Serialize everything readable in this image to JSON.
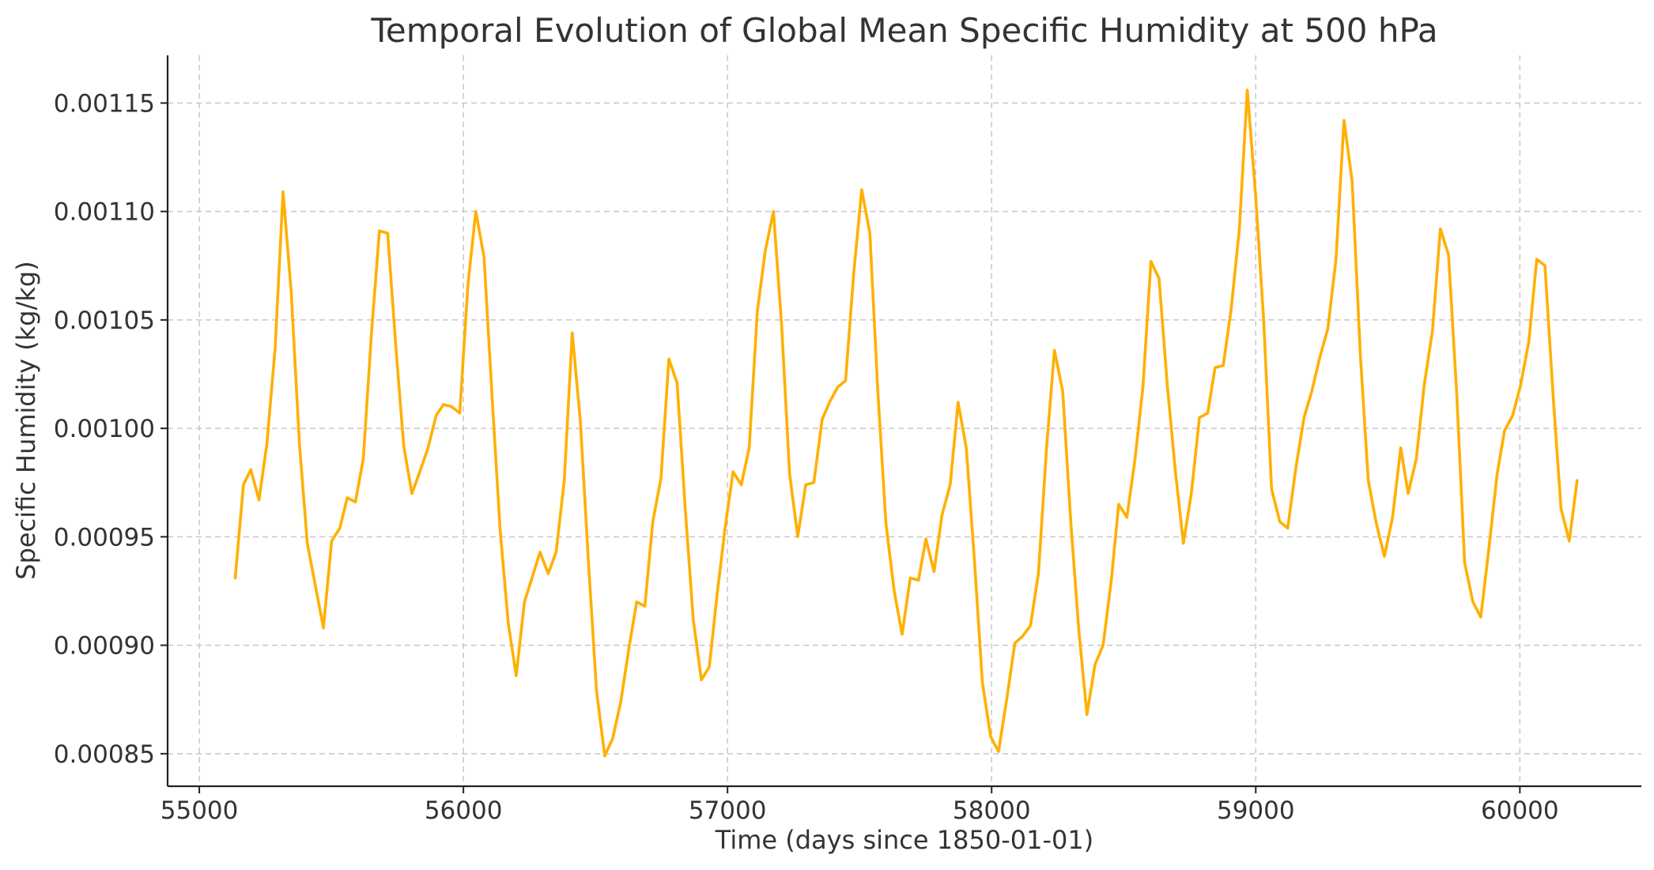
{
  "chart_data": {
    "type": "line",
    "title": "Temporal Evolution of Global Mean Specific Humidity at 500 hPa",
    "xlabel": "Time (days since 1850-01-01)",
    "ylabel": "Specific Humidity (kg/kg)",
    "xlim": [
      54880,
      60460
    ],
    "ylim": [
      0.000835,
      0.001172
    ],
    "xticks": [
      55000,
      56000,
      57000,
      58000,
      59000,
      60000
    ],
    "xtick_labels": [
      "55000",
      "56000",
      "57000",
      "58000",
      "59000",
      "60000"
    ],
    "yticks": [
      0.00085,
      0.0009,
      0.00095,
      0.001,
      0.00105,
      0.0011,
      0.00115
    ],
    "ytick_labels": [
      "0.00085",
      "0.00090",
      "0.00095",
      "0.00100",
      "0.00105",
      "0.00110",
      "0.00115"
    ],
    "grid": true,
    "line_color": "#ffb000",
    "series": [
      {
        "x": [
          55136,
          55167,
          55195,
          55226,
          55256,
          55287,
          55317,
          55348,
          55379,
          55409,
          55440,
          55470,
          55501,
          55532,
          55560,
          55591,
          55621,
          55652,
          55682,
          55713,
          55744,
          55774,
          55805,
          55835,
          55866,
          55897,
          55925,
          55956,
          55986,
          56017,
          56047,
          56078,
          56109,
          56139,
          56170,
          56200,
          56231,
          56262,
          56290,
          56321,
          56351,
          56382,
          56412,
          56443,
          56474,
          56504,
          56535,
          56565,
          56596,
          56627,
          56656,
          56687,
          56717,
          56748,
          56778,
          56809,
          56840,
          56870,
          56901,
          56931,
          56962,
          56993,
          57021,
          57052,
          57082,
          57113,
          57143,
          57174,
          57205,
          57235,
          57266,
          57296,
          57327,
          57358,
          57386,
          57417,
          57447,
          57478,
          57508,
          57539,
          57570,
          57600,
          57631,
          57661,
          57692,
          57723,
          57751,
          57782,
          57812,
          57843,
          57873,
          57904,
          57935,
          57965,
          57996,
          58026,
          58057,
          58088,
          58116,
          58147,
          58177,
          58208,
          58238,
          58269,
          58300,
          58330,
          58361,
          58391,
          58422,
          58453,
          58481,
          58512,
          58542,
          58573,
          58603,
          58634,
          58665,
          58695,
          58726,
          58756,
          58787,
          58818,
          58846,
          58877,
          58907,
          58938,
          58968,
          58999,
          59030,
          59060,
          59091,
          59121,
          59152,
          59183,
          59212,
          59243,
          59273,
          59304,
          59334,
          59365,
          59396,
          59426,
          59457,
          59487,
          59518,
          59549,
          59577,
          59608,
          59638,
          59669,
          59699,
          59730,
          59761,
          59791,
          59822,
          59852,
          59883,
          59914,
          59942,
          59973,
          60003,
          60034,
          60064,
          60095,
          60126,
          60156,
          60187,
          60217
        ],
        "values": [
          0.000931,
          0.000974,
          0.000981,
          0.000967,
          0.000993,
          0.001037,
          0.001109,
          0.001063,
          0.000993,
          0.000947,
          0.000927,
          0.000908,
          0.000948,
          0.000954,
          0.000968,
          0.000966,
          0.000986,
          0.001044,
          0.001091,
          0.00109,
          0.001038,
          0.000992,
          0.00097,
          0.00098,
          0.000991,
          0.001006,
          0.001011,
          0.00101,
          0.001007,
          0.001066,
          0.0011,
          0.001079,
          0.001014,
          0.000953,
          0.00091,
          0.000886,
          0.00092,
          0.000932,
          0.000943,
          0.000933,
          0.000943,
          0.000976,
          0.001044,
          0.001003,
          0.000937,
          0.000879,
          0.000849,
          0.000857,
          0.000874,
          0.000899,
          0.00092,
          0.000918,
          0.000957,
          0.000977,
          0.001032,
          0.001021,
          0.000963,
          0.000912,
          0.000884,
          0.00089,
          0.000925,
          0.000956,
          0.00098,
          0.000974,
          0.000991,
          0.001054,
          0.001082,
          0.0011,
          0.001047,
          0.000979,
          0.00095,
          0.000974,
          0.000975,
          0.001004,
          0.001012,
          0.001019,
          0.001022,
          0.001072,
          0.00111,
          0.00109,
          0.001015,
          0.000956,
          0.000925,
          0.000905,
          0.000931,
          0.00093,
          0.000949,
          0.000934,
          0.00096,
          0.000974,
          0.001012,
          0.000991,
          0.000939,
          0.000883,
          0.000858,
          0.000851,
          0.000875,
          0.000901,
          0.000904,
          0.000909,
          0.000933,
          0.000991,
          0.001036,
          0.001017,
          0.000956,
          0.000907,
          0.000868,
          0.000891,
          0.0009,
          0.00093,
          0.000965,
          0.000959,
          0.000985,
          0.001019,
          0.001077,
          0.001069,
          0.00102,
          0.000981,
          0.000947,
          0.00097,
          0.001005,
          0.001007,
          0.001028,
          0.001029,
          0.001055,
          0.001092,
          0.001156,
          0.001108,
          0.00105,
          0.000972,
          0.000957,
          0.000954,
          0.000982,
          0.001005,
          0.001017,
          0.001033,
          0.001046,
          0.001078,
          0.001142,
          0.001114,
          0.001034,
          0.000976,
          0.000956,
          0.000941,
          0.000959,
          0.000991,
          0.00097,
          0.000986,
          0.00102,
          0.001045,
          0.001092,
          0.00108,
          0.001016,
          0.000938,
          0.00092,
          0.000913,
          0.000945,
          0.000979,
          0.000999,
          0.001006,
          0.00102,
          0.00104,
          0.001078,
          0.001075,
          0.001015,
          0.000963,
          0.000948,
          0.000976
        ]
      }
    ]
  }
}
